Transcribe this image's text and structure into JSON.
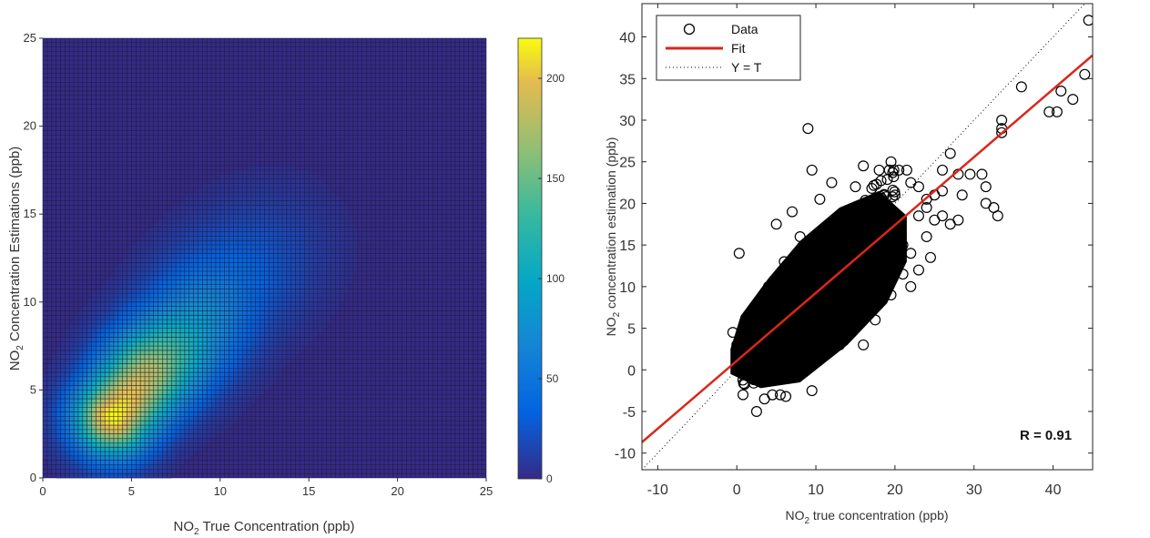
{
  "chart_data": [
    {
      "type": "heatmap",
      "xlabel_main": "NO",
      "xlabel_sub": "2",
      "xlabel_rest": " True Concentration (ppb)",
      "ylabel_main": "NO",
      "ylabel_sub": "2",
      "ylabel_rest": " Concentration Estimations (ppb)",
      "xlim": [
        0,
        25
      ],
      "ylim": [
        0,
        25
      ],
      "xticks": [
        "0",
        "5",
        "10",
        "15",
        "20",
        "25"
      ],
      "yticks": [
        "0",
        "5",
        "10",
        "15",
        "20",
        "25"
      ],
      "grid": true,
      "colormap": "parula",
      "colorbar": {
        "min": 0,
        "max": 220,
        "ticks": [
          "0",
          "50",
          "100",
          "150",
          "200"
        ]
      },
      "density_ridge": [
        {
          "x": 4,
          "y": 3.5,
          "count": 220
        },
        {
          "x": 6,
          "y": 6,
          "count": 180
        },
        {
          "x": 8,
          "y": 8,
          "count": 100
        },
        {
          "x": 10,
          "y": 10.5,
          "count": 50
        },
        {
          "x": 13,
          "y": 13,
          "count": 15
        }
      ]
    },
    {
      "type": "scatter",
      "xlabel_main": "NO",
      "xlabel_sub": "2",
      "xlabel_rest": " true concentration (ppb)",
      "ylabel_main": "NO",
      "ylabel_sub": "2",
      "ylabel_rest": " concentration estimation (ppb)",
      "xlim": [
        -12,
        45
      ],
      "ylim": [
        -12,
        44
      ],
      "xticks": [
        "-10",
        "0",
        "10",
        "20",
        "30",
        "40"
      ],
      "yticks": [
        "-10",
        "-5",
        "0",
        "5",
        "10",
        "15",
        "20",
        "25",
        "30",
        "35",
        "40"
      ],
      "legend": {
        "position": "top-left",
        "entries": [
          "Data",
          "Fit",
          "Y = T"
        ]
      },
      "series": [
        {
          "name": "Data",
          "marker": "circle",
          "color": "#000000",
          "points": [
            [
              0.3,
              14
            ],
            [
              9,
              29
            ],
            [
              9.5,
              24
            ],
            [
              9.5,
              -2.5
            ],
            [
              2.5,
              -5
            ],
            [
              3.5,
              -3.5
            ],
            [
              4.5,
              -3
            ],
            [
              5.5,
              -3
            ],
            [
              6.2,
              -3.2
            ],
            [
              1.5,
              6.5
            ],
            [
              5,
              17.5
            ],
            [
              7,
              19
            ],
            [
              10.5,
              20.5
            ],
            [
              12,
              22.5
            ],
            [
              15,
              22
            ],
            [
              16,
              24.5
            ],
            [
              18,
              24
            ],
            [
              19.5,
              25
            ],
            [
              20.5,
              24
            ],
            [
              21.5,
              24
            ],
            [
              22,
              22.5
            ],
            [
              23,
              22
            ],
            [
              24,
              20.5
            ],
            [
              25,
              21
            ],
            [
              26,
              21.5
            ],
            [
              24,
              19.5
            ],
            [
              23,
              18.5
            ],
            [
              25,
              18
            ],
            [
              26,
              18.5
            ],
            [
              27,
              17.5
            ],
            [
              28,
              18
            ],
            [
              28.5,
              21
            ],
            [
              26,
              24
            ],
            [
              27,
              26
            ],
            [
              28,
              23.5
            ],
            [
              29.5,
              23.5
            ],
            [
              31,
              23.5
            ],
            [
              31.5,
              20
            ],
            [
              32.5,
              19.5
            ],
            [
              33,
              18.5
            ],
            [
              31.5,
              22
            ],
            [
              33.5,
              28.5
            ],
            [
              33.5,
              29
            ],
            [
              33.5,
              30
            ],
            [
              36,
              34
            ],
            [
              39.5,
              31
            ],
            [
              40.5,
              31
            ],
            [
              41,
              33.5
            ],
            [
              42.5,
              32.5
            ],
            [
              44,
              35.5
            ],
            [
              44.5,
              42
            ],
            [
              24.5,
              13.5
            ],
            [
              21,
              15
            ],
            [
              22,
              14
            ],
            [
              24,
              16
            ],
            [
              19.5,
              9
            ],
            [
              17.5,
              6
            ],
            [
              15,
              5
            ],
            [
              14,
              4
            ],
            [
              11,
              4.5
            ],
            [
              12,
              6
            ],
            [
              22,
              10
            ],
            [
              23,
              12
            ],
            [
              21,
              11.5
            ],
            [
              -0.5,
              4.5
            ],
            [
              0,
              3
            ],
            [
              0.5,
              1.5
            ],
            [
              2,
              0
            ],
            [
              3,
              -1
            ],
            [
              16,
              3
            ],
            [
              13,
              3
            ],
            [
              10,
              3
            ],
            [
              6,
              13
            ],
            [
              8,
              16
            ],
            [
              4,
              10
            ],
            [
              3,
              8
            ],
            [
              17,
              12
            ],
            [
              15,
              8
            ],
            [
              18,
              20
            ],
            [
              20,
              21
            ]
          ]
        },
        {
          "name": "Fit",
          "type": "line",
          "color": "#d9261c",
          "points": [
            [
              -12,
              -8.7
            ],
            [
              45,
              37.8
            ]
          ]
        },
        {
          "name": "Y = T",
          "type": "dotted-line",
          "color": "#000000",
          "points": [
            [
              -12,
              -12
            ],
            [
              44,
              44
            ]
          ]
        }
      ],
      "annotation": "R = 0.91"
    }
  ]
}
